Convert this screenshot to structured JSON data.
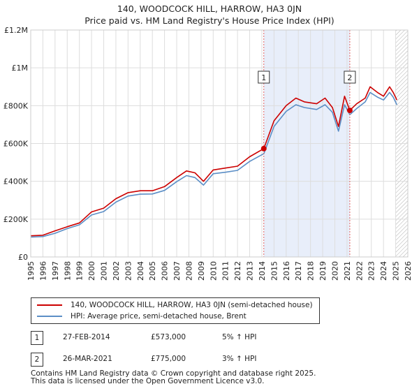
{
  "title": {
    "line1": "140, WOODCOCK HILL, HARROW, HA3 0JN",
    "line2": "Price paid vs. HM Land Registry's House Price Index (HPI)"
  },
  "chart_data": {
    "type": "line",
    "title": "140, WOODCOCK HILL, HARROW, HA3 0JN — Price paid vs. HM Land Registry's House Price Index (HPI)",
    "xlabel": "",
    "ylabel": "",
    "xlim": [
      1995.0,
      2026.0
    ],
    "ylim": [
      0,
      1200000
    ],
    "y_ticks": [
      0,
      200000,
      400000,
      600000,
      800000,
      1000000,
      1200000
    ],
    "y_tick_labels": [
      "£0",
      "£200K",
      "£400K",
      "£600K",
      "£800K",
      "£1M",
      "£1.2M"
    ],
    "x_ticks": [
      1995,
      1996,
      1997,
      1998,
      1999,
      2000,
      2001,
      2002,
      2003,
      2004,
      2005,
      2006,
      2007,
      2008,
      2009,
      2010,
      2011,
      2012,
      2013,
      2014,
      2015,
      2016,
      2017,
      2018,
      2019,
      2020,
      2021,
      2022,
      2023,
      2024,
      2025,
      2026
    ],
    "x_tick_labels": [
      "1995",
      "1996",
      "1997",
      "1998",
      "1999",
      "2000",
      "2001",
      "2002",
      "2003",
      "2004",
      "2005",
      "2006",
      "2007",
      "2008",
      "2009",
      "2010",
      "2011",
      "2012",
      "2013",
      "2014",
      "2015",
      "2016",
      "2017",
      "2018",
      "2019",
      "2020",
      "2021",
      "2022",
      "2023",
      "2024",
      "2025",
      "2026"
    ],
    "grid": true,
    "shaded_period": [
      2014.16,
      2021.23
    ],
    "future_hatch_from": 2025.0,
    "series": [
      {
        "name": "140, WOODCOCK HILL, HARROW, HA3 0JN (semi-detached house)",
        "color": "#cc0000",
        "x": [
          1995.0,
          1996.0,
          1997.0,
          1998.0,
          1999.0,
          2000.0,
          2001.0,
          2002.0,
          2003.0,
          2004.0,
          2005.0,
          2006.0,
          2007.0,
          2007.8,
          2008.5,
          2009.2,
          2010.0,
          2011.0,
          2012.0,
          2013.0,
          2014.16,
          2015.0,
          2016.0,
          2016.8,
          2017.5,
          2018.5,
          2019.2,
          2019.8,
          2020.3,
          2020.8,
          2021.23,
          2021.8,
          2022.5,
          2022.9,
          2023.5,
          2024.0,
          2024.5,
          2024.8,
          2025.1
        ],
        "values": [
          112000,
          115000,
          138000,
          160000,
          180000,
          238000,
          258000,
          308000,
          340000,
          350000,
          350000,
          372000,
          420000,
          455000,
          445000,
          400000,
          460000,
          470000,
          480000,
          530000,
          573000,
          720000,
          800000,
          840000,
          820000,
          810000,
          840000,
          790000,
          690000,
          850000,
          775000,
          810000,
          840000,
          900000,
          870000,
          850000,
          900000,
          870000,
          830000
        ]
      },
      {
        "name": "HPI: Average price, semi-detached house, Brent",
        "color": "#5b8ec6",
        "x": [
          1995.0,
          1996.0,
          1997.0,
          1998.0,
          1999.0,
          2000.0,
          2001.0,
          2002.0,
          2003.0,
          2004.0,
          2005.0,
          2006.0,
          2007.0,
          2007.8,
          2008.5,
          2009.2,
          2010.0,
          2011.0,
          2012.0,
          2013.0,
          2014.16,
          2015.0,
          2016.0,
          2016.8,
          2017.5,
          2018.5,
          2019.2,
          2019.8,
          2020.3,
          2020.8,
          2021.23,
          2021.8,
          2022.5,
          2022.9,
          2023.5,
          2024.0,
          2024.5,
          2024.8,
          2025.1
        ],
        "values": [
          105000,
          108000,
          125000,
          150000,
          170000,
          222000,
          240000,
          290000,
          322000,
          332000,
          333000,
          352000,
          398000,
          430000,
          420000,
          380000,
          440000,
          448000,
          458000,
          505000,
          546000,
          690000,
          770000,
          805000,
          790000,
          780000,
          805000,
          765000,
          665000,
          805000,
          752000,
          785000,
          820000,
          870000,
          845000,
          830000,
          870000,
          845000,
          805000
        ]
      }
    ],
    "annotations": [
      {
        "label": "1",
        "x": 2014.16,
        "y": 573000,
        "date": "27-FEB-2014",
        "price": "£573,000",
        "hpi": "5% ↑ HPI"
      },
      {
        "label": "2",
        "x": 2021.23,
        "y": 775000,
        "date": "26-MAR-2021",
        "price": "£775,000",
        "hpi": "3% ↑ HPI"
      }
    ]
  },
  "colors": {
    "price_line": "#cc0000",
    "hpi_line": "#5b8ec6",
    "shade": "#e8eefa",
    "grid": "#dddddd",
    "marker_line": "#e06060"
  },
  "legend": {
    "price_label": "140, WOODCOCK HILL, HARROW, HA3 0JN (semi-detached house)",
    "hpi_label": "HPI: Average price, semi-detached house, Brent"
  },
  "transactions": [
    {
      "id": "1",
      "date": "27-FEB-2014",
      "price": "£573,000",
      "hpi": "5% ↑ HPI"
    },
    {
      "id": "2",
      "date": "26-MAR-2021",
      "price": "£775,000",
      "hpi": "3% ↑ HPI"
    }
  ],
  "footer": {
    "line1": "Contains HM Land Registry data © Crown copyright and database right 2025.",
    "line2": "This data is licensed under the Open Government Licence v3.0."
  }
}
